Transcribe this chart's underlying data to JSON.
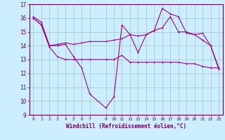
{
  "xlabel": "Windchill (Refroidissement éolien,°C)",
  "bg_color": "#cceeff",
  "grid_color": "#aacccc",
  "line_color": "#990099",
  "ylim": [
    9,
    17
  ],
  "xlim": [
    -0.5,
    23.5
  ],
  "yticks": [
    9,
    10,
    11,
    12,
    13,
    14,
    15,
    16,
    17
  ],
  "xticks": [
    0,
    1,
    2,
    3,
    4,
    5,
    6,
    7,
    9,
    10,
    11,
    12,
    13,
    14,
    15,
    16,
    17,
    18,
    19,
    20,
    21,
    22,
    23
  ],
  "line1_x": [
    0,
    1,
    2,
    3,
    4,
    5,
    6,
    7,
    9,
    10,
    11,
    12,
    13,
    14,
    15,
    16,
    17,
    18,
    19,
    20,
    21,
    22,
    23
  ],
  "line1_y": [
    16.1,
    15.7,
    14.0,
    14.0,
    14.1,
    13.2,
    12.4,
    10.5,
    9.5,
    10.3,
    15.5,
    14.8,
    13.5,
    14.8,
    15.1,
    16.7,
    16.3,
    16.1,
    14.9,
    14.8,
    14.9,
    14.0,
    12.4
  ],
  "line2_x": [
    0,
    1,
    2,
    3,
    4,
    5,
    6,
    7,
    9,
    10,
    11,
    12,
    13,
    14,
    15,
    16,
    17,
    18,
    19,
    20,
    21,
    22,
    23
  ],
  "line2_y": [
    16.0,
    15.5,
    14.0,
    14.1,
    14.2,
    14.1,
    14.2,
    14.3,
    14.3,
    14.4,
    14.5,
    14.8,
    14.7,
    14.8,
    15.1,
    15.3,
    16.1,
    15.0,
    15.0,
    14.8,
    14.4,
    14.0,
    12.3
  ],
  "line3_x": [
    0,
    1,
    2,
    3,
    4,
    5,
    6,
    7,
    9,
    10,
    11,
    12,
    13,
    14,
    15,
    16,
    17,
    18,
    19,
    20,
    21,
    22,
    23
  ],
  "line3_y": [
    16.0,
    15.5,
    13.9,
    13.2,
    13.0,
    13.0,
    13.0,
    13.0,
    13.0,
    13.0,
    13.3,
    12.8,
    12.8,
    12.8,
    12.8,
    12.8,
    12.8,
    12.8,
    12.7,
    12.7,
    12.5,
    12.4,
    12.4
  ]
}
